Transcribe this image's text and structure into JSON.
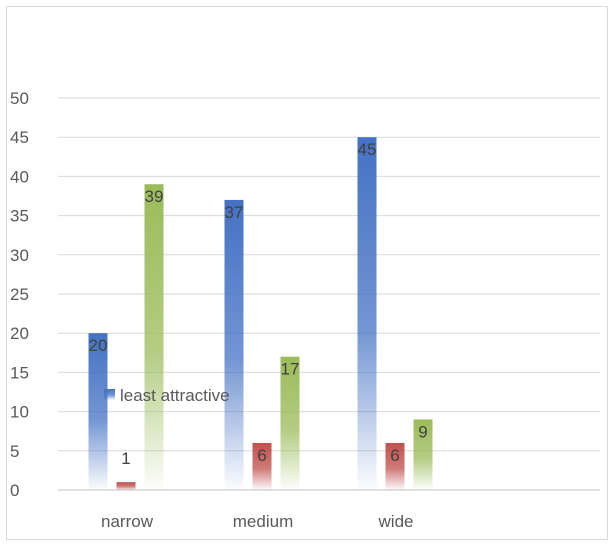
{
  "chart_data": {
    "type": "bar",
    "title": "",
    "xlabel": "",
    "ylabel": "",
    "categories": [
      "narrow",
      "medium",
      "wide"
    ],
    "ylim": [
      0,
      50
    ],
    "yticks": [
      0,
      5,
      10,
      15,
      20,
      25,
      30,
      35,
      40,
      45,
      50
    ],
    "grid": true,
    "legend": {
      "placement": "overlapping plot, left-center",
      "entries": [
        "least attractive"
      ]
    },
    "series": [
      {
        "name": "least attractive",
        "values": [
          20,
          37,
          45
        ],
        "color": "#4472c4"
      },
      {
        "values": [
          1,
          6,
          6
        ],
        "color": "#c0504d"
      },
      {
        "values": [
          39,
          17,
          9
        ],
        "color": "#9bbb59"
      }
    ]
  }
}
